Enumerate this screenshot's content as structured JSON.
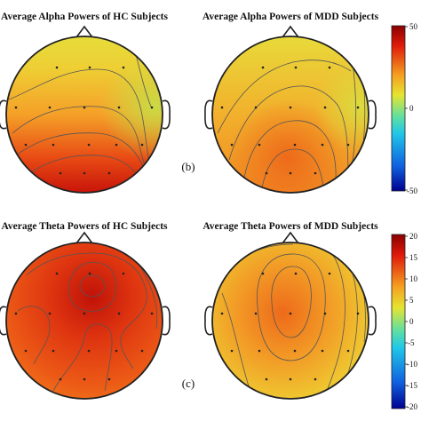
{
  "panel_b": {
    "label": "(b)",
    "colorbar": {
      "ticks": [
        "50",
        "0",
        "-50"
      ]
    },
    "maps": [
      {
        "title": "Average Alpha Powers of HC Subjects"
      },
      {
        "title": "Average Alpha Powers of MDD Subjects"
      }
    ]
  },
  "panel_c": {
    "label": "(c)",
    "colorbar": {
      "ticks": [
        "20",
        "15",
        "10",
        "5",
        "0",
        "-5",
        "-10",
        "-15",
        "-20"
      ]
    },
    "maps": [
      {
        "title": "Average Theta Powers of HC Subjects"
      },
      {
        "title": "Average Theta Powers of MDD Subjects"
      }
    ]
  },
  "colors": {
    "red": "#d11a0a",
    "orange": "#f0781c",
    "yellow": "#ecd832",
    "cyan": "#22c8e0",
    "blue": "#1010b0"
  }
}
